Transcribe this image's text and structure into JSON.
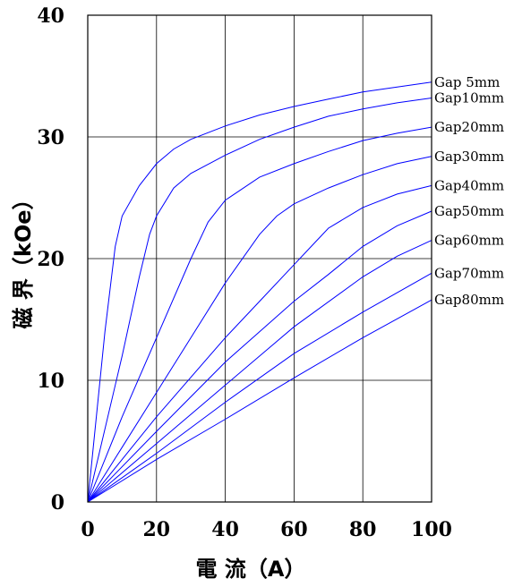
{
  "chart_data": {
    "type": "line",
    "xlabel": "電 流（A）",
    "ylabel": "磁 界（kOe）",
    "xlim": [
      0,
      100
    ],
    "ylim": [
      0,
      40
    ],
    "xticks": [
      "0",
      "20",
      "40",
      "60",
      "80",
      "100"
    ],
    "yticks": [
      "0",
      "10",
      "20",
      "30",
      "40"
    ],
    "grid": true,
    "line_color": "#0000ff",
    "series": [
      {
        "name": "Gap 5mm",
        "points": [
          [
            0,
            0
          ],
          [
            5,
            14
          ],
          [
            8,
            21
          ],
          [
            10,
            23.5
          ],
          [
            15,
            26
          ],
          [
            20,
            27.8
          ],
          [
            25,
            29
          ],
          [
            30,
            29.8
          ],
          [
            40,
            30.9
          ],
          [
            50,
            31.8
          ],
          [
            60,
            32.5
          ],
          [
            70,
            33.1
          ],
          [
            80,
            33.7
          ],
          [
            90,
            34.1
          ],
          [
            100,
            34.5
          ]
        ]
      },
      {
        "name": "Gap10mm",
        "points": [
          [
            0,
            0
          ],
          [
            10,
            12
          ],
          [
            15,
            18.5
          ],
          [
            18,
            22
          ],
          [
            20,
            23.5
          ],
          [
            25,
            25.8
          ],
          [
            30,
            27
          ],
          [
            40,
            28.5
          ],
          [
            50,
            29.8
          ],
          [
            60,
            30.8
          ],
          [
            70,
            31.7
          ],
          [
            80,
            32.3
          ],
          [
            90,
            32.8
          ],
          [
            100,
            33.2
          ]
        ]
      },
      {
        "name": "Gap20mm",
        "points": [
          [
            0,
            0
          ],
          [
            10,
            7
          ],
          [
            20,
            13.5
          ],
          [
            30,
            20
          ],
          [
            35,
            23
          ],
          [
            40,
            24.8
          ],
          [
            50,
            26.7
          ],
          [
            60,
            27.8
          ],
          [
            70,
            28.8
          ],
          [
            80,
            29.7
          ],
          [
            90,
            30.3
          ],
          [
            100,
            30.8
          ]
        ]
      },
      {
        "name": "Gap30mm",
        "points": [
          [
            0,
            0
          ],
          [
            10,
            4.5
          ],
          [
            20,
            9
          ],
          [
            30,
            13.5
          ],
          [
            40,
            18
          ],
          [
            50,
            22
          ],
          [
            55,
            23.5
          ],
          [
            60,
            24.5
          ],
          [
            70,
            25.8
          ],
          [
            80,
            26.9
          ],
          [
            90,
            27.8
          ],
          [
            100,
            28.4
          ]
        ]
      },
      {
        "name": "Gap40mm",
        "points": [
          [
            0,
            0
          ],
          [
            10,
            3.5
          ],
          [
            20,
            7
          ],
          [
            40,
            13.5
          ],
          [
            50,
            16.5
          ],
          [
            60,
            19.5
          ],
          [
            65,
            21
          ],
          [
            70,
            22.5
          ],
          [
            80,
            24.2
          ],
          [
            90,
            25.3
          ],
          [
            100,
            26
          ]
        ]
      },
      {
        "name": "Gap50mm",
        "points": [
          [
            0,
            0
          ],
          [
            20,
            5.8
          ],
          [
            40,
            11.5
          ],
          [
            60,
            16.5
          ],
          [
            70,
            18.7
          ],
          [
            80,
            21
          ],
          [
            90,
            22.7
          ],
          [
            100,
            23.9
          ]
        ]
      },
      {
        "name": "Gap60mm",
        "points": [
          [
            0,
            0
          ],
          [
            20,
            4.8
          ],
          [
            40,
            9.6
          ],
          [
            60,
            14.4
          ],
          [
            80,
            18.5
          ],
          [
            90,
            20.2
          ],
          [
            100,
            21.5
          ]
        ]
      },
      {
        "name": "Gap70mm",
        "points": [
          [
            0,
            0
          ],
          [
            20,
            4
          ],
          [
            40,
            8.2
          ],
          [
            60,
            12.2
          ],
          [
            80,
            15.6
          ],
          [
            100,
            18.8
          ]
        ]
      },
      {
        "name": "Gap80mm",
        "points": [
          [
            0,
            0
          ],
          [
            20,
            3.5
          ],
          [
            40,
            6.8
          ],
          [
            60,
            10.2
          ],
          [
            80,
            13.5
          ],
          [
            100,
            16.6
          ]
        ]
      }
    ]
  }
}
